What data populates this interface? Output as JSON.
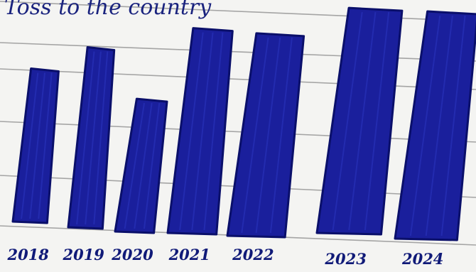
{
  "chart_data": {
    "type": "bar",
    "title": "Toss to the country",
    "categories": [
      "2018",
      "2019",
      "2020",
      "2021",
      "2022",
      "2023",
      "2024"
    ],
    "values": [
      68,
      80,
      59,
      91,
      90,
      100,
      101
    ],
    "colors": {
      "bar": "#1a1f9c",
      "bar_outline": "#0a0f6a",
      "ruled_line": "#8a8a8a",
      "paper": "#f4f4f2"
    }
  }
}
